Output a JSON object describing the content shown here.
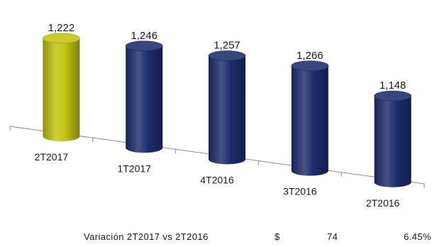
{
  "chart_data": {
    "type": "bar",
    "style": "3d-cylinder",
    "categories": [
      "2T2017",
      "1T2017",
      "4T2016",
      "3T2016",
      "2T2016"
    ],
    "values": [
      1222,
      1246,
      1257,
      1266,
      1148
    ],
    "data_labels": [
      "1,222",
      "1,246",
      "1,257",
      "1,266",
      "1,148"
    ],
    "colors": [
      "#c3c312",
      "#1c2d6e",
      "#1c2d6e",
      "#1c2d6e",
      "#1c2d6e"
    ],
    "title": "",
    "xlabel": "",
    "ylabel": "",
    "grid": false,
    "legend": "none"
  },
  "footer": {
    "label": "Variación 2T2017 vs 2T2016",
    "currency": "$",
    "difference": "74",
    "percent": "6.45%"
  }
}
